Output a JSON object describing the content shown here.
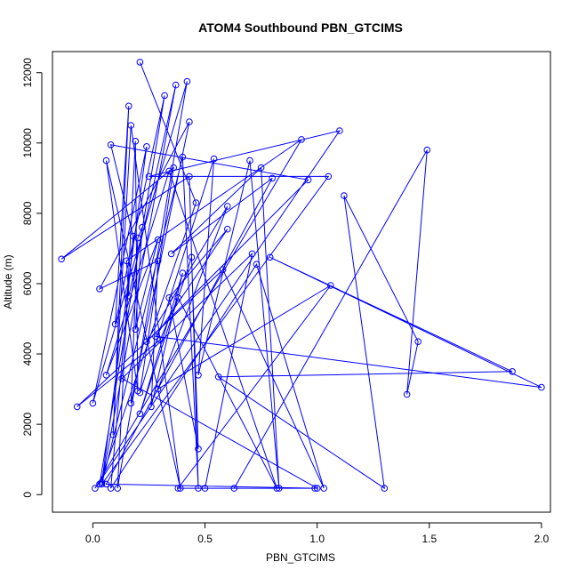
{
  "chart_data": {
    "type": "line",
    "title": "ATOM4 Southbound PBN_GTCIMS",
    "xlabel": "PBN_GTCIMS",
    "ylabel": "Altitude (m)",
    "xlim": [
      -0.18,
      2.04
    ],
    "ylim": [
      -500,
      12600
    ],
    "xticks": [
      0.0,
      0.5,
      1.0,
      1.5,
      2.0
    ],
    "xtick_labels": [
      "0.0",
      "0.5",
      "1.0",
      "1.5",
      "2.0"
    ],
    "yticks": [
      0,
      2000,
      4000,
      6000,
      8000,
      10000,
      12000
    ],
    "ytick_labels": [
      "0",
      "2000",
      "4000",
      "6000",
      "8000",
      "10000",
      "12000"
    ],
    "grid": false,
    "color": "#0000ff",
    "marker": "open-circle",
    "series": [
      {
        "name": "",
        "points": [
          [
            0.21,
            12300
          ],
          [
            0.46,
            8300
          ],
          [
            0.03,
            300
          ],
          [
            0.32,
            11350
          ],
          [
            0.1,
            4850
          ],
          [
            0.16,
            11050
          ],
          [
            0.09,
            1700
          ],
          [
            0.17,
            10500
          ],
          [
            0.39,
            180
          ],
          [
            0.06,
            9500
          ],
          [
            0.2,
            2950
          ],
          [
            0.19,
            10050
          ],
          [
            0.11,
            180
          ],
          [
            0.42,
            11750
          ],
          [
            0.0,
            2600
          ],
          [
            0.24,
            9900
          ],
          [
            0.04,
            350
          ],
          [
            0.37,
            11650
          ],
          [
            0.16,
            5650
          ],
          [
            0.15,
            6650
          ],
          [
            0.93,
            10100
          ],
          [
            0.01,
            180
          ],
          [
            1.1,
            10350
          ],
          [
            0.25,
            9050
          ],
          [
            1.05,
            9050
          ],
          [
            0.04,
            300
          ],
          [
            0.4,
            9600
          ],
          [
            0.47,
            180
          ],
          [
            0.43,
            9050
          ],
          [
            -0.14,
            6700
          ],
          [
            0.36,
            9300
          ],
          [
            0.21,
            2900
          ],
          [
            0.54,
            9550
          ],
          [
            0.47,
            3400
          ],
          [
            0.7,
            9500
          ],
          [
            0.83,
            180
          ],
          [
            0.75,
            9300
          ],
          [
            0.35,
            6850
          ],
          [
            0.8,
            9000
          ],
          [
            0.06,
            300
          ],
          [
            1.0,
            180
          ],
          [
            0.13,
            3300
          ],
          [
            0.71,
            6850
          ],
          [
            0.5,
            180
          ],
          [
            0.63,
            180
          ],
          [
            1.49,
            9800
          ],
          [
            1.4,
            2850
          ],
          [
            1.45,
            4350
          ],
          [
            1.12,
            8500
          ],
          [
            1.3,
            180
          ],
          [
            0.56,
            3350
          ],
          [
            1.87,
            3500
          ],
          [
            0.79,
            6750
          ],
          [
            2.0,
            3050
          ],
          [
            0.28,
            4500
          ],
          [
            0.6,
            7550
          ],
          [
            0.34,
            5600
          ],
          [
            0.47,
            1300
          ],
          [
            0.44,
            6750
          ],
          [
            0.21,
            2300
          ],
          [
            0.4,
            6300
          ],
          [
            0.26,
            2500
          ],
          [
            0.29,
            6650
          ],
          [
            0.03,
            5850
          ],
          [
            0.43,
            10600
          ],
          [
            0.17,
            2600
          ],
          [
            0.2,
            7300
          ],
          [
            0.22,
            7600
          ],
          [
            0.19,
            4700
          ],
          [
            0.29,
            7250
          ],
          [
            0.06,
            3400
          ],
          [
            0.34,
            9200
          ],
          [
            0.82,
            180
          ],
          [
            0.38,
            5600
          ],
          [
            0.3,
            4400
          ],
          [
            -0.07,
            2500
          ],
          [
            0.58,
            6400
          ],
          [
            1.03,
            180
          ],
          [
            0.73,
            6550
          ],
          [
            0.08,
            180
          ],
          [
            0.18,
            7350
          ],
          [
            0.08,
            9950
          ],
          [
            0.96,
            8950
          ],
          [
            0.24,
            4350
          ],
          [
            0.6,
            8200
          ],
          [
            0.29,
            3000
          ],
          [
            1.06,
            5950
          ],
          [
            0.38,
            180
          ],
          [
            0.99,
            180
          ]
        ]
      }
    ]
  }
}
